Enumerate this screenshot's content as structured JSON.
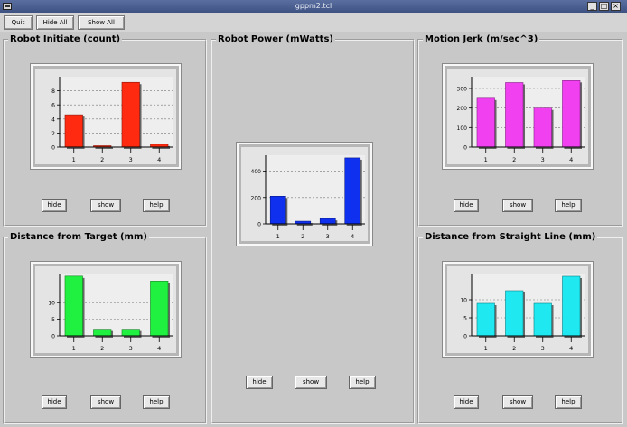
{
  "window": {
    "title": "gppm2.tcl",
    "minimize_label": "_",
    "maximize_label": "□",
    "close_label": "×"
  },
  "toolbar": {
    "quit_label": "Quit",
    "hide_all_label": "Hide All",
    "show_all_label": "Show All"
  },
  "panels": {
    "initiate": {
      "title": "Robot Initiate (count)",
      "hide_label": "hide",
      "show_label": "show",
      "help_label": "help"
    },
    "power": {
      "title": "Robot Power (mWatts)",
      "hide_label": "hide",
      "show_label": "show",
      "help_label": "help"
    },
    "jerk": {
      "title": "Motion Jerk (m/sec^3)",
      "hide_label": "hide",
      "show_label": "show",
      "help_label": "help"
    },
    "distance_target": {
      "title": "Distance from Target (mm)",
      "hide_label": "hide",
      "show_label": "show",
      "help_label": "help"
    },
    "distance_line": {
      "title": "Distance from Straight Line (mm)",
      "hide_label": "hide",
      "show_label": "show",
      "help_label": "help"
    }
  },
  "chart_data": [
    {
      "id": "initiate",
      "type": "bar",
      "categories": [
        "1",
        "2",
        "3",
        "4"
      ],
      "values": [
        4.6,
        0.1,
        9.2,
        0.4
      ],
      "ylim": [
        0,
        10
      ],
      "yticks": [
        "0",
        "2",
        "4",
        "6",
        "8"
      ],
      "ytick_values": [
        0,
        2,
        4,
        6,
        8
      ],
      "grid": true,
      "color": "#ff2a10"
    },
    {
      "id": "power",
      "type": "bar",
      "categories": [
        "1",
        "2",
        "3",
        "4"
      ],
      "values": [
        210,
        20,
        40,
        500
      ],
      "ylim": [
        0,
        520
      ],
      "yticks": [
        "0",
        "200",
        "400"
      ],
      "ytick_values": [
        0,
        200,
        400
      ],
      "grid": true,
      "color": "#1030f0"
    },
    {
      "id": "jerk",
      "type": "bar",
      "categories": [
        "1",
        "2",
        "3",
        "4"
      ],
      "values": [
        250,
        330,
        200,
        340
      ],
      "ylim": [
        0,
        360
      ],
      "yticks": [
        "0",
        "100",
        "200",
        "300"
      ],
      "ytick_values": [
        0,
        100,
        200,
        300
      ],
      "grid": true,
      "color": "#f040f0"
    },
    {
      "id": "distance_target",
      "type": "bar",
      "categories": [
        "1",
        "2",
        "3",
        "4"
      ],
      "values": [
        18,
        2,
        2,
        16.5
      ],
      "ylim": [
        0,
        18.5
      ],
      "yticks": [
        "0",
        "5",
        "10"
      ],
      "ytick_values": [
        0,
        5,
        10
      ],
      "grid": true,
      "color": "#20f040"
    },
    {
      "id": "distance_line",
      "type": "bar",
      "categories": [
        "1",
        "2",
        "3",
        "4"
      ],
      "values": [
        9,
        12.5,
        9,
        16.5
      ],
      "ylim": [
        0,
        17
      ],
      "yticks": [
        "0",
        "5",
        "10"
      ],
      "ytick_values": [
        0,
        5,
        10
      ],
      "grid": true,
      "color": "#20e8f0"
    }
  ]
}
